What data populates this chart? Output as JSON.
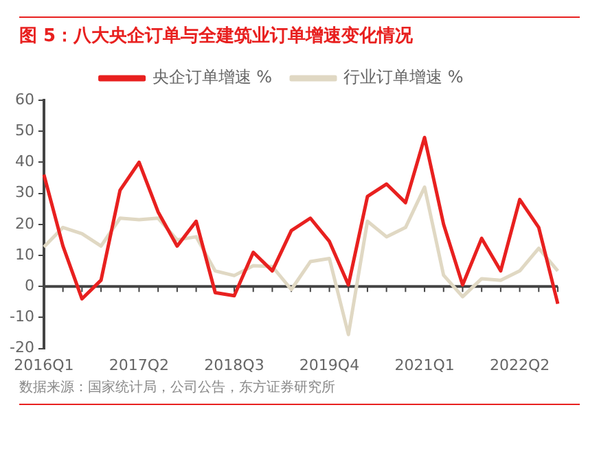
{
  "chart_data": {
    "type": "line",
    "title": "图 5：八大央企订单与全建筑业订单增速变化情况",
    "categories": [
      "2016Q1",
      null,
      null,
      null,
      null,
      "2017Q2",
      null,
      null,
      null,
      null,
      "2018Q3",
      null,
      null,
      null,
      null,
      "2019Q4",
      null,
      null,
      null,
      null,
      "2021Q1",
      null,
      null,
      null,
      null,
      "2022Q2",
      null,
      null
    ],
    "series": [
      {
        "name": "央企订单增速 %",
        "color": "#e8201f",
        "values": [
          36,
          13,
          -4,
          2,
          31,
          40,
          24,
          13,
          21,
          -2,
          -3,
          11,
          5,
          18,
          22,
          14.5,
          0.5,
          29,
          33,
          27,
          48,
          20,
          0.5,
          15.5,
          5,
          28,
          19,
          -5.6
        ]
      },
      {
        "name": "行业订单增速 %",
        "color": "#e0d8c3",
        "values": [
          12.7,
          19,
          17,
          13,
          22,
          21.5,
          22,
          15,
          16,
          5,
          3.5,
          6.7,
          6.4,
          -1,
          8,
          9,
          -15.5,
          21,
          16,
          19,
          32,
          3.6,
          -3.3,
          2.5,
          2,
          5,
          12.3,
          5
        ]
      }
    ],
    "ylim": [
      -20,
      60
    ],
    "yticks": [
      -20,
      -10,
      0,
      10,
      20,
      30,
      40,
      50,
      60
    ],
    "grid": false,
    "legend": "top",
    "marker": "none",
    "line_style": "solid",
    "ref_lines": [
      {
        "axis": "y",
        "value": 0,
        "color": "#444444"
      }
    ],
    "annotations": [
      "数据来源：国家统计局，公司公告，东方证券研究所"
    ]
  }
}
